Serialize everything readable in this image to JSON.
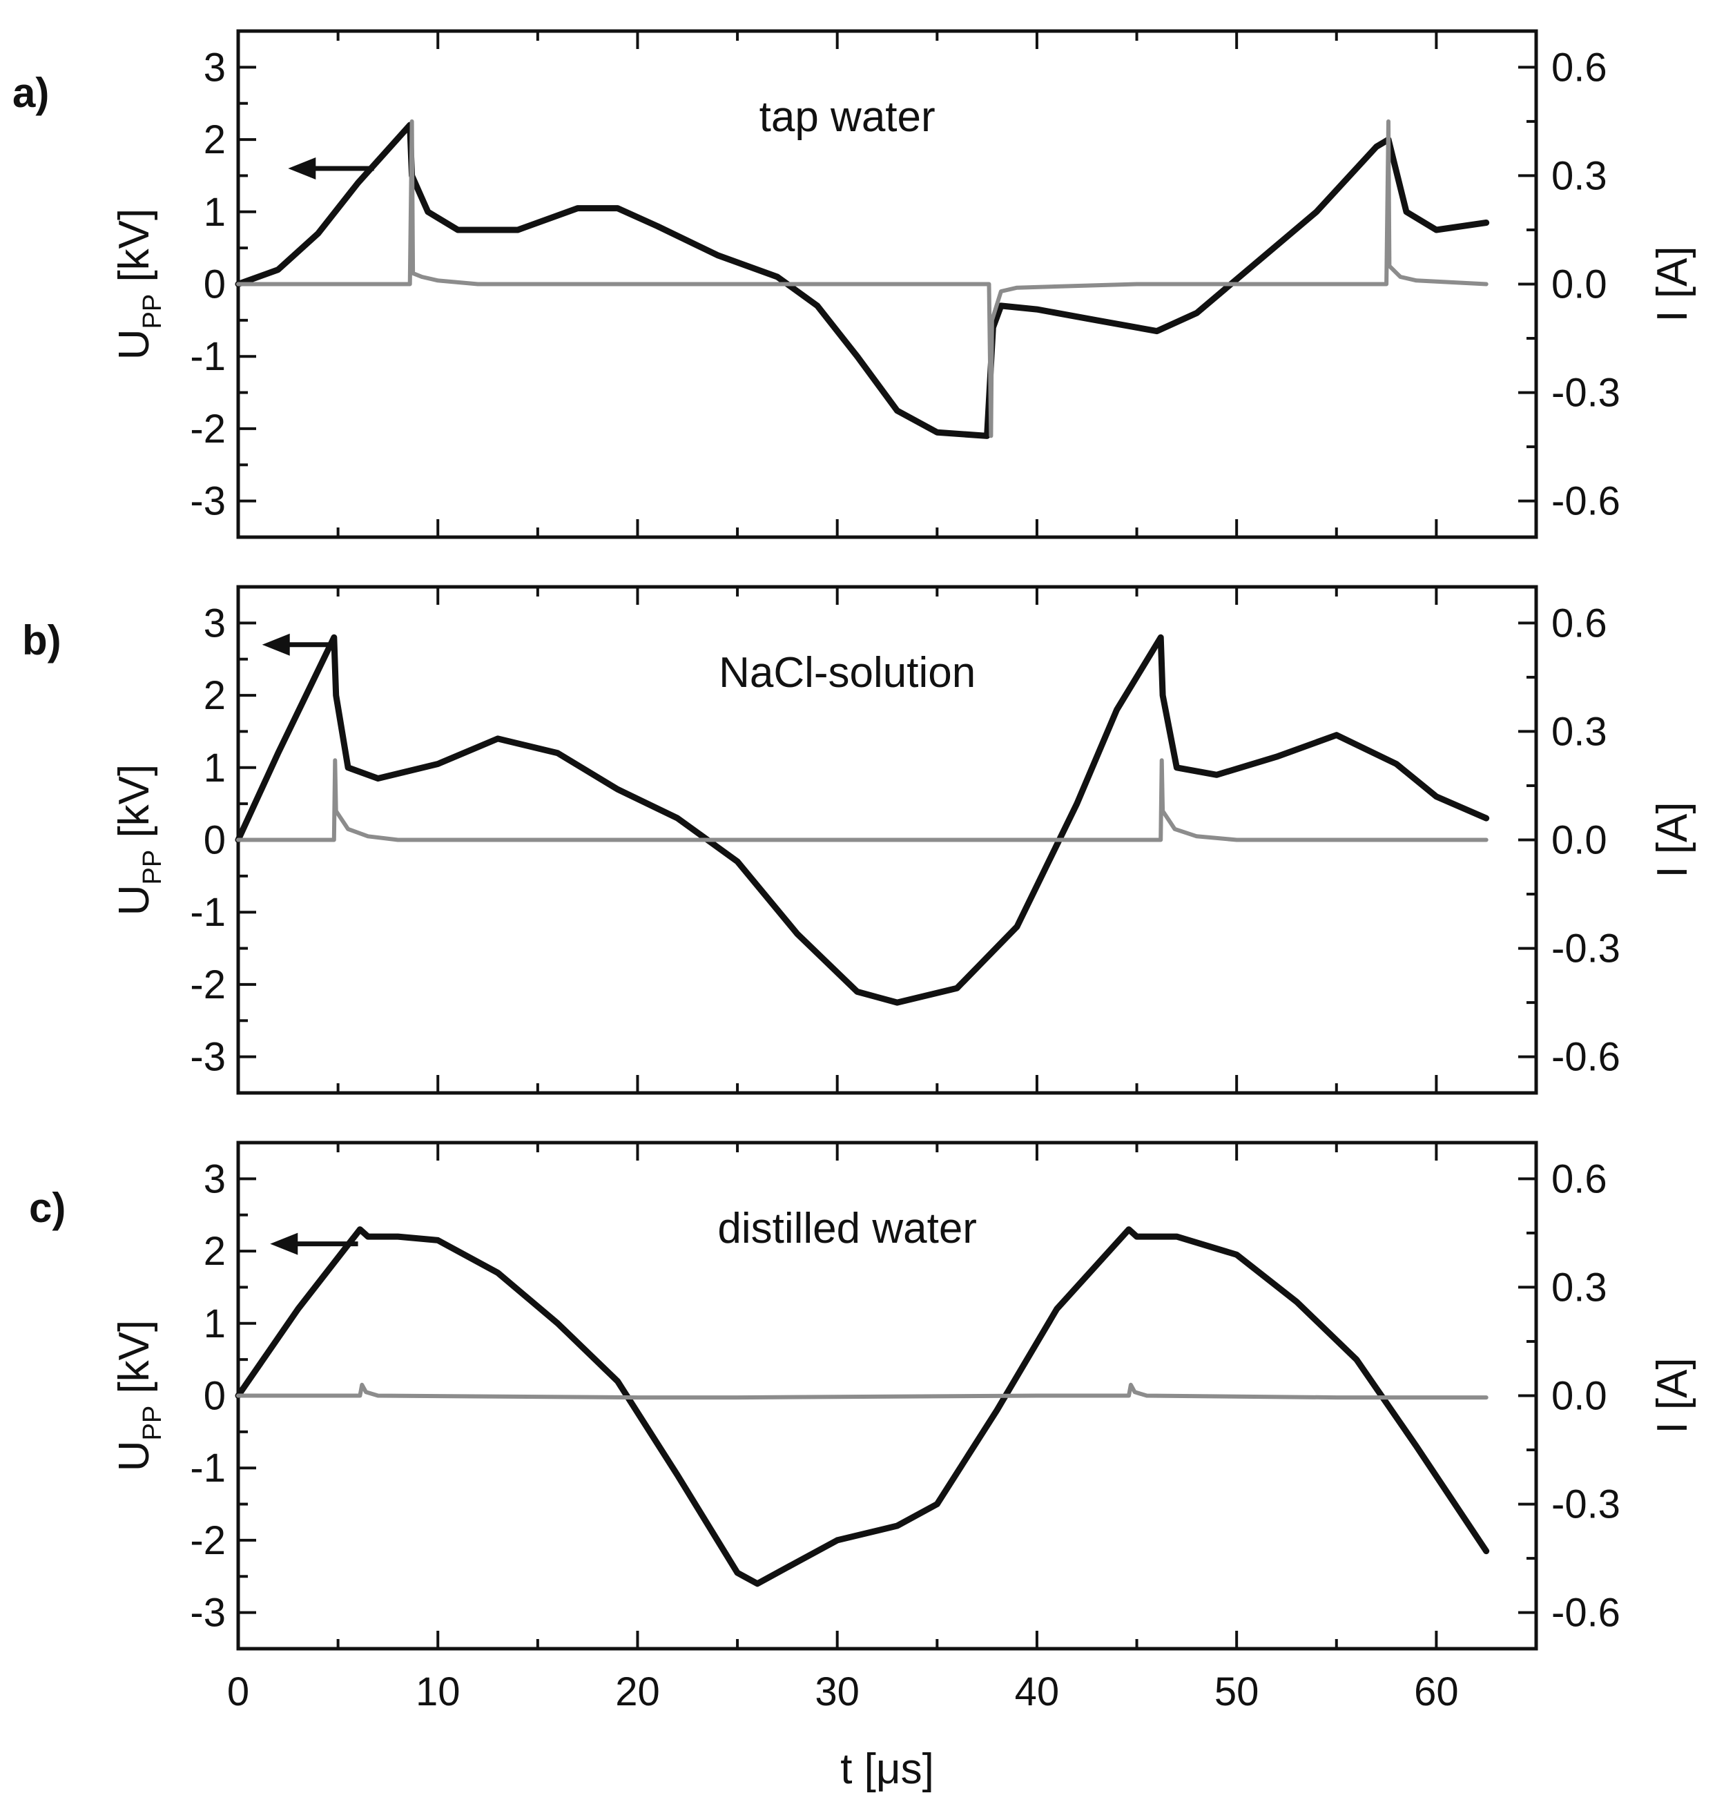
{
  "figure": {
    "x_axis_label": "t [μs]",
    "x_ticks": [
      0,
      10,
      20,
      30,
      40,
      50,
      60
    ],
    "x_tick_labels": [
      "0",
      "10",
      "20",
      "30",
      "40",
      "50",
      "60"
    ],
    "xlim": [
      0,
      65
    ],
    "colors": {
      "voltage": "#111111",
      "current": "#8c8c8c",
      "axes": "#111111"
    }
  },
  "chart_data": [
    {
      "type": "line",
      "panel_label": "a)",
      "annotation": "tap water",
      "ylabel_left": "U",
      "ylabel_left_sub": "PP",
      "ylabel_left_unit": "[kV]",
      "ylabel_right": "I [A]",
      "ylim_left": [
        -3.5,
        3.5
      ],
      "ylim_right": [
        -0.7,
        0.7
      ],
      "yticks_left": [
        3,
        2,
        1,
        0,
        -1,
        -2,
        -3
      ],
      "yticks_left_labels": [
        "3",
        "2",
        "1",
        "0",
        "-1",
        "-2",
        "-3"
      ],
      "yticks_right": [
        0.6,
        0.3,
        0.0,
        -0.3,
        -0.6
      ],
      "yticks_right_labels": [
        "0.6",
        "0.3",
        "0.0",
        "-0.3",
        "-0.6"
      ],
      "arrow": {
        "from_x": 6.8,
        "to_x": 2.5,
        "y": 1.6,
        "direction": "left"
      },
      "series": [
        {
          "name": "U_PP",
          "axis": "left",
          "x": [
            0,
            2,
            4,
            6,
            8.6,
            8.7,
            9.5,
            11,
            14,
            17,
            19,
            21,
            24,
            27,
            29,
            31,
            33,
            35,
            37.5,
            37.8,
            38.2,
            40,
            43,
            46,
            48,
            51,
            54,
            57,
            57.6,
            58.5,
            60,
            62.5
          ],
          "y": [
            0,
            0.2,
            0.7,
            1.4,
            2.2,
            1.5,
            1.0,
            0.75,
            0.75,
            1.05,
            1.05,
            0.8,
            0.4,
            0.1,
            -0.3,
            -1.0,
            -1.75,
            -2.05,
            -2.1,
            -0.6,
            -0.3,
            -0.35,
            -0.5,
            -0.65,
            -0.4,
            0.3,
            1.0,
            1.9,
            2.0,
            1.0,
            0.75,
            0.85
          ]
        },
        {
          "name": "I",
          "axis": "right",
          "x": [
            0,
            8.6,
            8.7,
            8.75,
            9.2,
            10,
            12,
            20,
            30,
            37.6,
            37.7,
            37.75,
            38.2,
            39,
            45,
            57.5,
            57.6,
            57.65,
            58.2,
            59,
            62.5
          ],
          "y": [
            0,
            0,
            0.45,
            0.03,
            0.02,
            0.01,
            0,
            0,
            0,
            0,
            -0.42,
            -0.1,
            -0.02,
            -0.01,
            0,
            0,
            0.45,
            0.05,
            0.02,
            0.01,
            0
          ]
        }
      ]
    },
    {
      "type": "line",
      "panel_label": "b)",
      "annotation": "NaCl-solution",
      "ylabel_left": "U",
      "ylabel_left_sub": "PP",
      "ylabel_left_unit": "[kV]",
      "ylabel_right": "I [A]",
      "ylim_left": [
        -3.5,
        3.5
      ],
      "ylim_right": [
        -0.7,
        0.7
      ],
      "yticks_left": [
        3,
        2,
        1,
        0,
        -1,
        -2,
        -3
      ],
      "yticks_left_labels": [
        "3",
        "2",
        "1",
        "0",
        "-1",
        "-2",
        "-3"
      ],
      "yticks_right": [
        0.6,
        0.3,
        0.0,
        -0.3,
        -0.6
      ],
      "yticks_right_labels": [
        "0.6",
        "0.3",
        "0.0",
        "-0.3",
        "-0.6"
      ],
      "arrow": {
        "from_x": 4.6,
        "to_x": 1.2,
        "y": 2.7,
        "direction": "left"
      },
      "series": [
        {
          "name": "U_PP",
          "axis": "left",
          "x": [
            0,
            2,
            4.8,
            4.9,
            5.5,
            7,
            10,
            13,
            16,
            19,
            22,
            25,
            28,
            31,
            33,
            36,
            39,
            42,
            44,
            46.2,
            46.3,
            47,
            49,
            52,
            55,
            58,
            60,
            62.5
          ],
          "y": [
            0,
            1.2,
            2.8,
            2.0,
            1.0,
            0.85,
            1.05,
            1.4,
            1.2,
            0.7,
            0.3,
            -0.3,
            -1.3,
            -2.1,
            -2.25,
            -2.05,
            -1.2,
            0.5,
            1.8,
            2.8,
            2.0,
            1.0,
            0.9,
            1.15,
            1.45,
            1.05,
            0.6,
            0.3
          ]
        },
        {
          "name": "I",
          "axis": "right",
          "x": [
            0,
            4.8,
            4.85,
            4.9,
            5.5,
            6.5,
            8,
            20,
            30,
            40,
            46.2,
            46.25,
            46.3,
            46.9,
            48,
            50,
            62.5
          ],
          "y": [
            0,
            0,
            0.22,
            0.08,
            0.03,
            0.01,
            0,
            0,
            0,
            0,
            0,
            0.22,
            0.08,
            0.03,
            0.01,
            0,
            0
          ]
        }
      ]
    },
    {
      "type": "line",
      "panel_label": "c)",
      "annotation": "distilled water",
      "ylabel_left": "U",
      "ylabel_left_sub": "PP",
      "ylabel_left_unit": "[kV]",
      "ylabel_right": "I [A]",
      "ylim_left": [
        -3.5,
        3.5
      ],
      "ylim_right": [
        -0.7,
        0.7
      ],
      "yticks_left": [
        3,
        2,
        1,
        0,
        -1,
        -2,
        -3
      ],
      "yticks_left_labels": [
        "3",
        "2",
        "1",
        "0",
        "-1",
        "-2",
        "-3"
      ],
      "yticks_right": [
        0.6,
        0.3,
        0.0,
        -0.3,
        -0.6
      ],
      "yticks_right_labels": [
        "0.6",
        "0.3",
        "0.0",
        "-0.3",
        "-0.6"
      ],
      "arrow": {
        "from_x": 6.0,
        "to_x": 1.6,
        "y": 2.1,
        "direction": "left"
      },
      "series": [
        {
          "name": "U_PP",
          "axis": "left",
          "x": [
            0,
            3,
            6.1,
            6.5,
            8,
            10,
            13,
            16,
            19,
            22,
            25,
            26,
            28,
            30,
            33,
            35,
            38,
            41,
            44.6,
            45,
            47,
            50,
            53,
            56,
            59,
            62.5
          ],
          "y": [
            0,
            1.2,
            2.3,
            2.2,
            2.2,
            2.15,
            1.7,
            1.0,
            0.2,
            -1.1,
            -2.45,
            -2.6,
            -2.3,
            -2.0,
            -1.8,
            -1.5,
            -0.2,
            1.2,
            2.3,
            2.2,
            2.2,
            1.95,
            1.3,
            0.5,
            -0.7,
            -2.15
          ]
        },
        {
          "name": "I",
          "axis": "right",
          "x": [
            0,
            6.1,
            6.2,
            6.4,
            7,
            20,
            25,
            40,
            44.6,
            44.7,
            44.9,
            45.5,
            55,
            62.5
          ],
          "y": [
            0,
            0,
            0.03,
            0.01,
            0,
            -0.005,
            -0.005,
            0,
            0,
            0.03,
            0.01,
            0,
            -0.005,
            -0.005
          ]
        }
      ]
    }
  ]
}
